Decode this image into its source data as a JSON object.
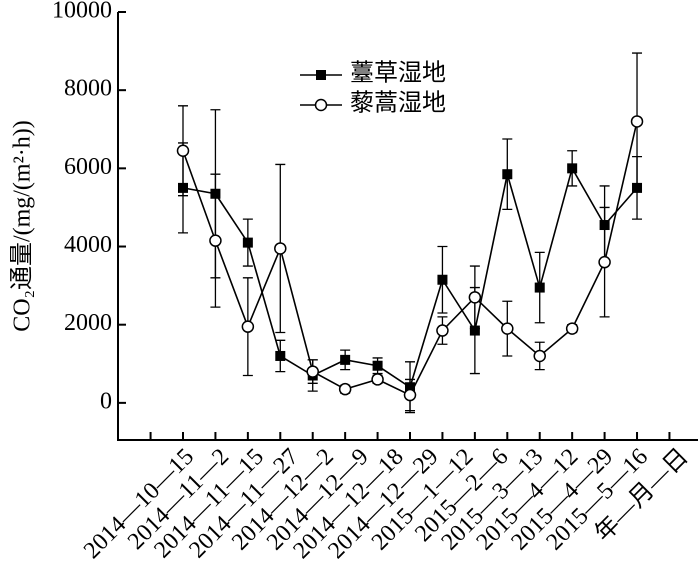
{
  "chart_data": {
    "type": "line",
    "ylabel": "CO₂通量/(mg/(m²·h))",
    "xlabel": "年—月—日",
    "categories": [
      "2014—10—15",
      "2014—11—2",
      "2014—11—15",
      "2014—11—27",
      "2014—12—2",
      "2014—12—9",
      "2014—12—18",
      "2014—12—29",
      "2015—1—12",
      "2015—2—6",
      "2015—3—13",
      "2015—4—12",
      "2015—4—29",
      "2015—5—16",
      null
    ],
    "series": [
      {
        "name": "薹草湿地",
        "color": "#000000",
        "marker": "square",
        "values": [
          5500,
          5350,
          4100,
          1200,
          700,
          1100,
          950,
          400,
          3150,
          1850,
          5850,
          2950,
          6000,
          4550,
          5500
        ],
        "errors": [
          1150,
          2150,
          600,
          400,
          400,
          250,
          200,
          650,
          850,
          1100,
          900,
          900,
          450,
          1000,
          800
        ]
      },
      {
        "name": "藜蒿湿地",
        "color": "#000000",
        "marker": "circle",
        "values": [
          6450,
          4150,
          1950,
          3950,
          800,
          350,
          600,
          200,
          1850,
          2700,
          1900,
          1200,
          1900,
          3600,
          7200
        ],
        "errors": [
          1150,
          1700,
          1250,
          2150,
          300,
          100,
          100,
          400,
          350,
          800,
          700,
          350,
          100,
          1400,
          1750
        ]
      }
    ],
    "ylim": [
      -950,
      10000
    ],
    "yticks": [
      0,
      2000,
      4000,
      6000,
      8000,
      10000
    ],
    "legend": "upper center"
  }
}
